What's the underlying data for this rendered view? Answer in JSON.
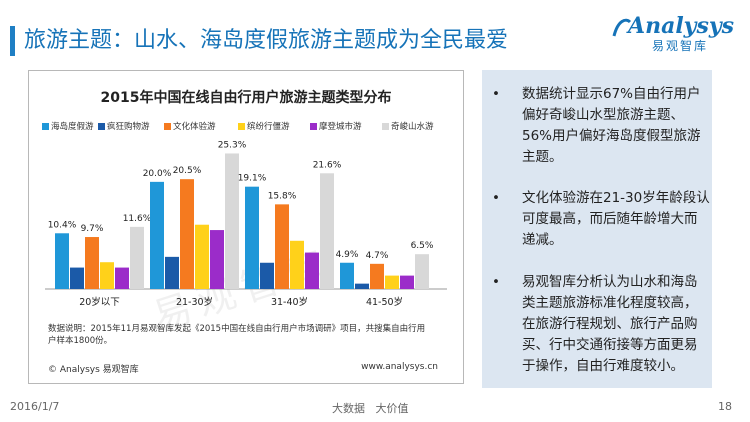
{
  "slide": {
    "title": "旅游主题：山水、海岛度假旅游主题成为全民最爱",
    "date": "2016/1/7",
    "center_text": "大数据   大价值",
    "page_number": "18"
  },
  "logo": {
    "name": "Analysys",
    "subtitle": "易观智库"
  },
  "chart_panel": {
    "note": "数据说明：2015年11月易观智库发起《2015中国在线自由行用户市场调研》项目，共搜集自由行用户样本1800份。",
    "footer_left": "© Analysys 易观智库",
    "footer_right": "www.analysys.cn",
    "watermark": "易观智库"
  },
  "chart_data": {
    "type": "bar",
    "title": "2015年中国在线自由行用户旅游主题类型分布",
    "categories": [
      "20岁以下",
      "21-30岁",
      "31-40岁",
      "41-50岁"
    ],
    "series": [
      {
        "name": "海岛度假游",
        "color": "#1f97d8",
        "values": [
          10.4,
          20.0,
          19.1,
          4.9
        ]
      },
      {
        "name": "疯狂购物游",
        "color": "#1b5aa8",
        "values": [
          4.0,
          6.0,
          4.9,
          1.0
        ]
      },
      {
        "name": "文化体验游",
        "color": "#f57a1f",
        "values": [
          9.7,
          20.5,
          15.8,
          4.7
        ]
      },
      {
        "name": "缤纷行僵游",
        "color": "#ffd11a",
        "values": [
          5.0,
          12.0,
          9.0,
          2.5
        ]
      },
      {
        "name": "摩登城市游",
        "color": "#9b2cc9",
        "values": [
          4.0,
          11.0,
          6.8,
          2.5
        ]
      },
      {
        "name": "奇峻山水游",
        "color": "#d8d8d8",
        "values": [
          11.6,
          25.3,
          21.6,
          6.5
        ]
      }
    ],
    "data_labels": [
      [
        "10.4%",
        "",
        "9.7%",
        "",
        "",
        "11.6%"
      ],
      [
        "20.0%",
        "",
        "20.5%",
        "",
        "",
        "25.3%"
      ],
      [
        "19.1%",
        "",
        "15.8%",
        "",
        "",
        "21.6%"
      ],
      [
        "4.9%",
        "",
        "4.7%",
        "",
        "",
        "6.5%"
      ]
    ],
    "ylim": [
      0,
      28
    ],
    "grid": false,
    "legend_position": "top"
  },
  "bullets": [
    "数据统计显示67%自由行用户偏好奇峻山水型旅游主题、56%用户偏好海岛度假型旅游主题。",
    "文化体验游在21-30岁年龄段认可度最高，而后随年龄增大而递减。",
    "易观智库分析认为山水和海岛类主题旅游标准化程度较高，在旅游行程规划、旅行产品购买、行中交通衔接等方面更易于操作，自由行难度较小。"
  ],
  "bullet_symbol": "•"
}
